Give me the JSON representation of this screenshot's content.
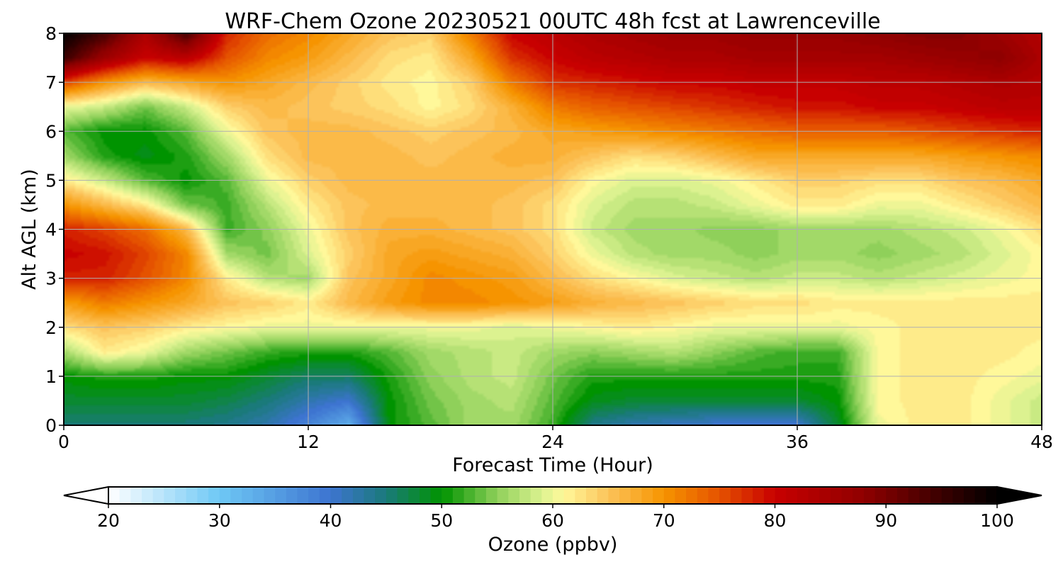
{
  "chart_data": {
    "type": "heatmap",
    "title": "WRF-Chem Ozone  20230521 00UTC 48h fcst at Lawrenceville",
    "xlabel": "Forecast Time (Hour)",
    "ylabel": "Alt AGL (km)",
    "xlim": [
      0,
      48
    ],
    "ylim": [
      0,
      8
    ],
    "xticks": [
      0,
      12,
      24,
      36,
      48
    ],
    "yticks": [
      0,
      1,
      2,
      3,
      4,
      5,
      6,
      7,
      8
    ],
    "grid": true,
    "x": [
      0,
      2,
      4,
      6,
      8,
      10,
      12,
      14,
      16,
      18,
      20,
      22,
      24,
      26,
      28,
      30,
      32,
      34,
      36,
      38,
      40,
      42,
      44,
      46,
      48
    ],
    "y": [
      0,
      0.5,
      1,
      1.5,
      2,
      2.5,
      3,
      3.5,
      4,
      4.5,
      5,
      5.5,
      6,
      6.5,
      7,
      7.5,
      8
    ],
    "z": [
      [
        45,
        45,
        45,
        45,
        44,
        42,
        38,
        33,
        50,
        53,
        56,
        56,
        52,
        44,
        42,
        41,
        40,
        40,
        40,
        48,
        60,
        62,
        62,
        60,
        58
      ],
      [
        48,
        48,
        48,
        48,
        47,
        45,
        42,
        40,
        50,
        54,
        56,
        57,
        53,
        49,
        48,
        48,
        48,
        48,
        48,
        50,
        61,
        62,
        62,
        60,
        58
      ],
      [
        50,
        51,
        51,
        50,
        50,
        48,
        46,
        46,
        51,
        55,
        57,
        58,
        54,
        51,
        51,
        51,
        51,
        51,
        51,
        51,
        61,
        62,
        62,
        61,
        60
      ],
      [
        56,
        62,
        60,
        56,
        54,
        52,
        51,
        51,
        53,
        56,
        57,
        58,
        56,
        55,
        56,
        57,
        55,
        53,
        52,
        52,
        61,
        62,
        62,
        62,
        61
      ],
      [
        63,
        65,
        64,
        62,
        61,
        60,
        60,
        60,
        60,
        60,
        60,
        59,
        60,
        61,
        62,
        61,
        60,
        60,
        60,
        60,
        61,
        62,
        62,
        62,
        62
      ],
      [
        69,
        72,
        70,
        68,
        65,
        64,
        62,
        66,
        69,
        71,
        71,
        70,
        69,
        67,
        66,
        65,
        64,
        63,
        63,
        62,
        62,
        62,
        62,
        62,
        62
      ],
      [
        78,
        78,
        75,
        71,
        62,
        57,
        56,
        65,
        68,
        71,
        70,
        69,
        66,
        63,
        61,
        59,
        58,
        57,
        58,
        58,
        57,
        58,
        59,
        60,
        61
      ],
      [
        80,
        79,
        76,
        71,
        56,
        54,
        59,
        64,
        68,
        69,
        68,
        67,
        64,
        60,
        57,
        56,
        56,
        55,
        56,
        56,
        55,
        56,
        57,
        59,
        61
      ],
      [
        78,
        76,
        73,
        66,
        52,
        55,
        60,
        65,
        67,
        67,
        66,
        65,
        63,
        58,
        56,
        56,
        55,
        55,
        56,
        56,
        56,
        57,
        58,
        60,
        63
      ],
      [
        70,
        66,
        62,
        54,
        52,
        57,
        62,
        65,
        66,
        66,
        66,
        65,
        63,
        59,
        57,
        57,
        58,
        60,
        62,
        62,
        60,
        60,
        62,
        64,
        66
      ],
      [
        62,
        58,
        53,
        50,
        53,
        60,
        64,
        66,
        66,
        66,
        66,
        66,
        65,
        61,
        59,
        59,
        60,
        62,
        64,
        64,
        63,
        63,
        65,
        66,
        68
      ],
      [
        56,
        51,
        49,
        51,
        56,
        63,
        66,
        66,
        66,
        65,
        66,
        67,
        67,
        65,
        63,
        64,
        66,
        68,
        68,
        68,
        68,
        68,
        69,
        70,
        71
      ],
      [
        53,
        50,
        50,
        53,
        60,
        65,
        66,
        66,
        65,
        64,
        65,
        66,
        68,
        69,
        70,
        71,
        72,
        73,
        74,
        74,
        74,
        75,
        76,
        77,
        78
      ],
      [
        60,
        58,
        54,
        58,
        64,
        66,
        65,
        64,
        63,
        61,
        63,
        67,
        72,
        74,
        75,
        76,
        77,
        78,
        79,
        79,
        80,
        80,
        81,
        82,
        82
      ],
      [
        76,
        70,
        66,
        68,
        70,
        68,
        66,
        64,
        62,
        61,
        64,
        72,
        77,
        78,
        79,
        80,
        80,
        81,
        81,
        81,
        82,
        82,
        83,
        84,
        83
      ],
      [
        95,
        86,
        80,
        82,
        75,
        71,
        69,
        66,
        63,
        62,
        68,
        77,
        80,
        82,
        83,
        84,
        84,
        85,
        85,
        85,
        85,
        86,
        87,
        88,
        84
      ],
      [
        100,
        94,
        84,
        94,
        78,
        73,
        71,
        68,
        65,
        64,
        72,
        80,
        82,
        84,
        85,
        86,
        86,
        87,
        87,
        87,
        88,
        89,
        89,
        86,
        83
      ]
    ]
  },
  "colorbar": {
    "label": "Ozone  (ppbv)",
    "min": 20,
    "max": 100,
    "tick_values": [
      20,
      30,
      40,
      50,
      60,
      70,
      80,
      90,
      100
    ],
    "stops": [
      {
        "v": 20,
        "c": "#ffffff"
      },
      {
        "v": 30,
        "c": "#6ec8f5"
      },
      {
        "v": 40,
        "c": "#3d74d0"
      },
      {
        "v": 45,
        "c": "#1a7a7a"
      },
      {
        "v": 50,
        "c": "#009300"
      },
      {
        "v": 55,
        "c": "#8fd05a"
      },
      {
        "v": 59,
        "c": "#dcf290"
      },
      {
        "v": 61,
        "c": "#fff89a"
      },
      {
        "v": 65,
        "c": "#fcc35a"
      },
      {
        "v": 70,
        "c": "#f69400"
      },
      {
        "v": 75,
        "c": "#e55200"
      },
      {
        "v": 80,
        "c": "#c80000"
      },
      {
        "v": 88,
        "c": "#8f0000"
      },
      {
        "v": 95,
        "c": "#3a0000"
      },
      {
        "v": 100,
        "c": "#000000"
      }
    ]
  }
}
